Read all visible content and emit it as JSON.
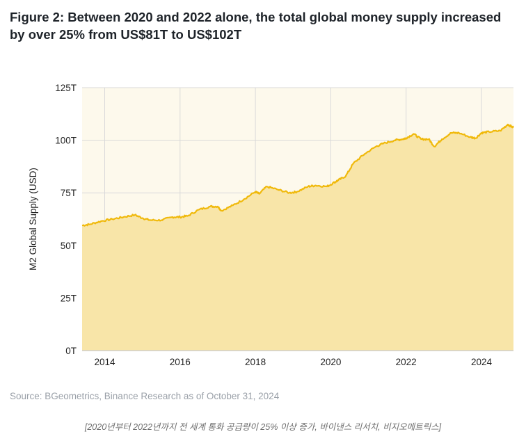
{
  "figure": {
    "title": "Figure 2: Between 2020 and 2022 alone, the total global money supply increased by over 25% from US$81T to US$102T",
    "source": "Source: BGeometrics, Binance Research as of October 31, 2024",
    "caption": "[2020년부터 2022년까지 전 세계 통화 공급량이 25% 이상 증가, 바이낸스 리서치, 비지오메트릭스]"
  },
  "colors": {
    "line": "#f0b90b",
    "fill": "#f8e5a8",
    "plot_bg": "#fdf9ec",
    "grid": "#d9d9d9",
    "axis": "#bdbdbd",
    "text": "#222222"
  },
  "chart_data": {
    "type": "area",
    "title": "",
    "xlabel": "",
    "ylabel": "M2 Global Supply (USD)",
    "xlim": [
      2013.4,
      2024.85
    ],
    "ylim": [
      0,
      125
    ],
    "grid": true,
    "x_ticks": [
      2014,
      2016,
      2018,
      2020,
      2022,
      2024
    ],
    "x_tick_labels": [
      "2014",
      "2016",
      "2018",
      "2020",
      "2022",
      "2024"
    ],
    "y_ticks": [
      0,
      25,
      50,
      75,
      100,
      125
    ],
    "y_tick_labels": [
      "0T",
      "25T",
      "50T",
      "75T",
      "100T",
      "125T"
    ],
    "series": [
      {
        "name": "M2 Global Supply",
        "x": [
          2013.4,
          2013.6,
          2013.9,
          2014.2,
          2014.5,
          2014.8,
          2015.0,
          2015.2,
          2015.5,
          2015.8,
          2016.0,
          2016.2,
          2016.5,
          2016.8,
          2017.0,
          2017.1,
          2017.4,
          2017.7,
          2018.0,
          2018.1,
          2018.3,
          2018.6,
          2018.9,
          2019.1,
          2019.4,
          2019.6,
          2019.9,
          2020.1,
          2020.2,
          2020.4,
          2020.6,
          2020.9,
          2021.2,
          2021.4,
          2021.7,
          2021.9,
          2022.0,
          2022.2,
          2022.4,
          2022.6,
          2022.75,
          2022.95,
          2023.2,
          2023.4,
          2023.7,
          2023.85,
          2024.0,
          2024.2,
          2024.5,
          2024.7,
          2024.85
        ],
        "values": [
          59.5,
          60,
          61.5,
          62.5,
          63.5,
          64.5,
          63,
          62,
          62,
          63.5,
          63.5,
          64,
          67,
          68.5,
          68.5,
          66.5,
          69,
          72,
          75.5,
          74.5,
          78,
          76.5,
          75,
          75.5,
          78,
          78.5,
          78,
          80,
          81,
          83,
          89,
          93.5,
          97,
          98.5,
          100,
          100.5,
          101,
          103,
          100.5,
          100.5,
          97,
          100.5,
          103.5,
          103.5,
          101.5,
          101,
          103.5,
          104,
          104.5,
          107.5,
          106
        ]
      }
    ]
  }
}
